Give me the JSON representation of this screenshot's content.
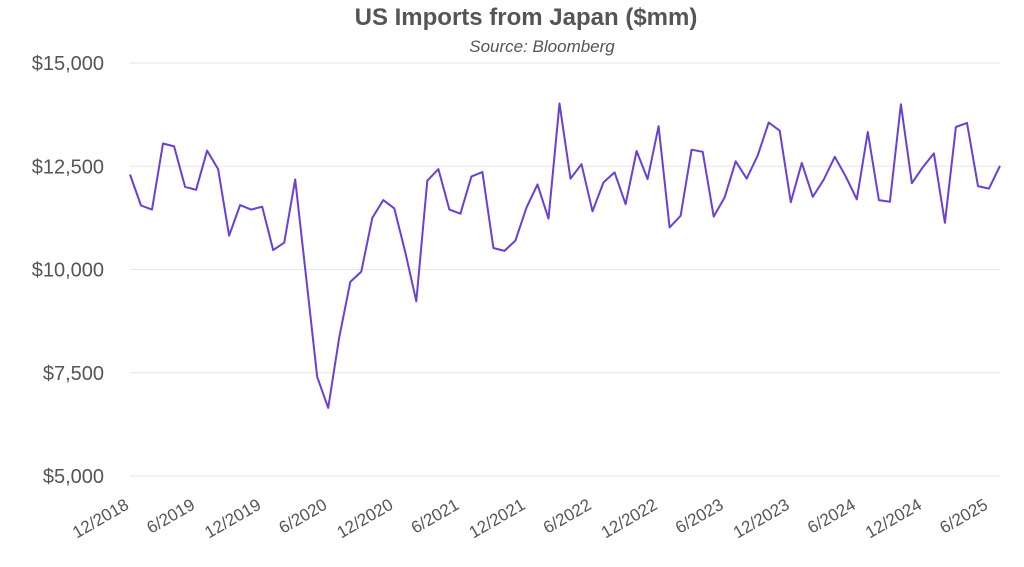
{
  "chart_data": {
    "type": "line",
    "title": "US Imports from Japan ($mm)",
    "subtitle": "Source: Bloomberg",
    "xlabel": "",
    "ylabel": "",
    "ylim": [
      5000,
      15000
    ],
    "yticks": [
      5000,
      7500,
      10000,
      12500,
      15000
    ],
    "ytick_labels": [
      "$5,000",
      "$7,500",
      "$10,000",
      "$12,500",
      "$15,000"
    ],
    "xtick_labels": [
      "12/2018",
      "6/2019",
      "12/2019",
      "6/2020",
      "12/2020",
      "6/2021",
      "12/2021",
      "6/2022",
      "12/2022",
      "6/2023",
      "12/2023",
      "6/2024",
      "12/2024",
      "6/2025"
    ],
    "grid": true,
    "line_color": "#6a3fd8",
    "x": [
      "12/2018",
      "1/2019",
      "2/2019",
      "3/2019",
      "4/2019",
      "5/2019",
      "6/2019",
      "7/2019",
      "8/2019",
      "9/2019",
      "10/2019",
      "11/2019",
      "12/2019",
      "1/2020",
      "2/2020",
      "3/2020",
      "4/2020",
      "5/2020",
      "6/2020",
      "7/2020",
      "8/2020",
      "9/2020",
      "10/2020",
      "11/2020",
      "12/2020",
      "1/2021",
      "2/2021",
      "3/2021",
      "4/2021",
      "5/2021",
      "6/2021",
      "7/2021",
      "8/2021",
      "9/2021",
      "10/2021",
      "11/2021",
      "12/2021",
      "1/2022",
      "2/2022",
      "3/2022",
      "4/2022",
      "5/2022",
      "6/2022",
      "7/2022",
      "8/2022",
      "9/2022",
      "10/2022",
      "11/2022",
      "12/2022",
      "1/2023",
      "2/2023",
      "3/2023",
      "4/2023",
      "5/2023",
      "6/2023",
      "7/2023",
      "8/2023",
      "9/2023",
      "10/2023",
      "11/2023",
      "12/2023",
      "1/2024",
      "2/2024",
      "3/2024",
      "4/2024",
      "5/2024",
      "6/2024",
      "7/2024",
      "8/2024",
      "9/2024",
      "10/2024",
      "11/2024",
      "12/2024",
      "1/2025",
      "2/2025",
      "3/2025",
      "4/2025",
      "5/2025",
      "6/2025",
      "7/2025"
    ],
    "series": [
      {
        "values": [
          12300,
          11550,
          11450,
          13050,
          12980,
          12000,
          11930,
          12880,
          12430,
          10820,
          11560,
          11450,
          11520,
          10470,
          10650,
          12180,
          9800,
          7400,
          6650,
          8350,
          9700,
          9950,
          11250,
          11680,
          11480,
          10420,
          9230,
          12150,
          12430,
          11450,
          11350,
          12250,
          12360,
          10520,
          10450,
          10700,
          11500,
          12060,
          11230,
          14020,
          12200,
          12550,
          11410,
          12110,
          12350,
          11580,
          12870,
          12190,
          13470,
          11020,
          11300,
          12900,
          12850,
          11280,
          11750,
          12620,
          12200,
          12760,
          13560,
          13360,
          11630,
          12580,
          11760,
          12180,
          12730,
          12250,
          11700,
          13330,
          11680,
          11640,
          14000,
          12090,
          12480,
          12810,
          11130,
          13450,
          13550,
          12020,
          11960,
          12510
        ]
      }
    ]
  }
}
